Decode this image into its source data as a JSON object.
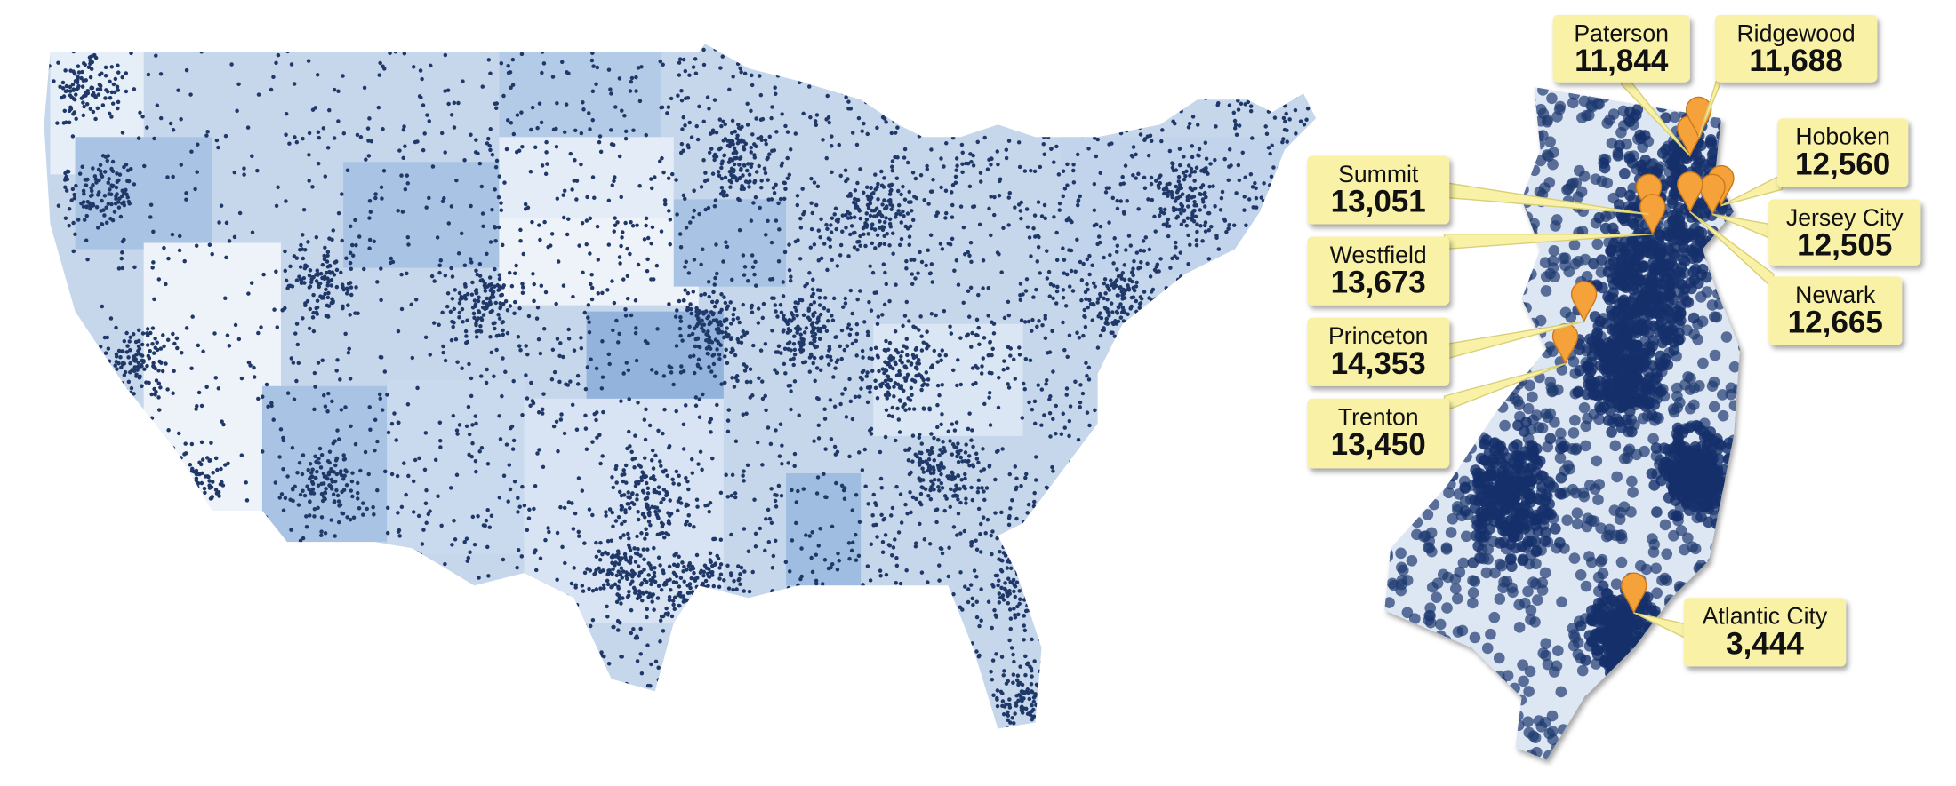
{
  "callouts": [
    {
      "name": "Paterson",
      "value": "11,844"
    },
    {
      "name": "Ridgewood",
      "value": "11,688"
    },
    {
      "name": "Hoboken",
      "value": "12,560"
    },
    {
      "name": "Jersey City",
      "value": "12,505"
    },
    {
      "name": "Newark",
      "value": "12,665"
    },
    {
      "name": "Summit",
      "value": "13,051"
    },
    {
      "name": "Westfield",
      "value": "13,673"
    },
    {
      "name": "Princeton",
      "value": "14,353"
    },
    {
      "name": "Trenton",
      "value": "13,450"
    },
    {
      "name": "Atlantic City",
      "value": "3,444"
    }
  ]
}
